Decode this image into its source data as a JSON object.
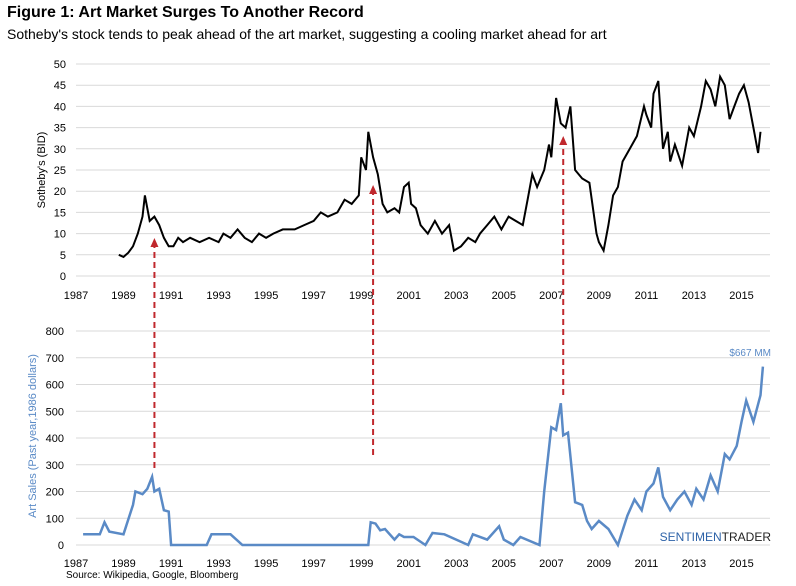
{
  "title": "Figure 1: Art Market Surges To Another Record",
  "subtitle": "Sotheby's stock tends to peak ahead of the art market, suggesting a cooling market ahead for art",
  "source": "Source: Wikipedia, Google, Bloomberg",
  "brand": {
    "part1": "SENTIMEN",
    "part2": "TRADER"
  },
  "colors": {
    "top_line": "#000000",
    "bottom_line": "#5a8ac6",
    "arrows": "#c0282d",
    "grid": "#d9d9d9"
  },
  "chart_data": [
    {
      "type": "line",
      "ylabel": "Sotheby's (BID)",
      "xlim": [
        1987,
        2016.2
      ],
      "ylim": [
        0,
        50
      ],
      "x_ticks": [
        "1987",
        "1989",
        "1991",
        "1993",
        "1995",
        "1997",
        "1999",
        "2001",
        "2003",
        "2005",
        "2007",
        "2009",
        "2011",
        "2013",
        "2015"
      ],
      "y_ticks": [
        "0",
        "5",
        "10",
        "15",
        "20",
        "25",
        "30",
        "35",
        "40",
        "45",
        "50"
      ],
      "grid": true,
      "series": [
        {
          "x": [
            1988.8,
            1989.0,
            1989.2,
            1989.4,
            1989.6,
            1989.8,
            1989.9,
            1990.0,
            1990.1,
            1990.3,
            1990.5,
            1990.7,
            1990.9,
            1991.1,
            1991.3,
            1991.5,
            1991.8,
            1992.2,
            1992.6,
            1993.0,
            1993.2,
            1993.5,
            1993.8,
            1994.1,
            1994.4,
            1994.7,
            1995.0,
            1995.3,
            1995.7,
            1996.2,
            1996.6,
            1997.0,
            1997.3,
            1997.6,
            1998.0,
            1998.3,
            1998.6,
            1998.9,
            1999.0,
            1999.2,
            1999.3,
            1999.5,
            1999.7,
            1999.9,
            2000.1,
            2000.4,
            2000.6,
            2000.8,
            2001.0,
            2001.1,
            2001.3,
            2001.5,
            2001.8,
            2002.1,
            2002.4,
            2002.7,
            2002.9,
            2003.2,
            2003.5,
            2003.8,
            2004.0,
            2004.3,
            2004.6,
            2004.9,
            2005.2,
            2005.5,
            2005.8,
            2006.0,
            2006.2,
            2006.4,
            2006.7,
            2006.9,
            2007.0,
            2007.2,
            2007.4,
            2007.6,
            2007.8,
            2008.0,
            2008.3,
            2008.6,
            2008.9,
            2009.0,
            2009.2,
            2009.4,
            2009.6,
            2009.8,
            2010.0,
            2010.3,
            2010.6,
            2010.9,
            2011.0,
            2011.2,
            2011.3,
            2011.5,
            2011.7,
            2011.9,
            2012.0,
            2012.2,
            2012.5,
            2012.8,
            2013.0,
            2013.3,
            2013.5,
            2013.7,
            2013.9,
            2014.1,
            2014.3,
            2014.5,
            2014.7,
            2014.9,
            2015.1,
            2015.3,
            2015.5,
            2015.7,
            2015.8
          ],
          "y": [
            5,
            4.5,
            5.5,
            7,
            10,
            14,
            19,
            16,
            13,
            14,
            12,
            9,
            7,
            7,
            9,
            8,
            9,
            8,
            9,
            8,
            10,
            9,
            11,
            9,
            8,
            10,
            9,
            10,
            11,
            11,
            12,
            13,
            15,
            14,
            15,
            18,
            17,
            19,
            28,
            25,
            34,
            28,
            24,
            17,
            15,
            16,
            15,
            21,
            22,
            17,
            16,
            12,
            10,
            13,
            10,
            12,
            6,
            7,
            9,
            8,
            10,
            12,
            14,
            11,
            14,
            13,
            12,
            18,
            24,
            21,
            25,
            31,
            28,
            42,
            36,
            35,
            40,
            25,
            23,
            22,
            10,
            8,
            6,
            12,
            19,
            21,
            27,
            30,
            33,
            40,
            38,
            35,
            43,
            46,
            30,
            34,
            27,
            31,
            26,
            35,
            33,
            40,
            46,
            44,
            40,
            47,
            45,
            37,
            40,
            43,
            45,
            41,
            35,
            29,
            34
          ]
        }
      ]
    },
    {
      "type": "line",
      "ylabel": "Art Sales (Past year,1986 dollars)",
      "xlim": [
        1987,
        2016.2
      ],
      "ylim": [
        0,
        800
      ],
      "x_ticks": [
        "1987",
        "1989",
        "1991",
        "1993",
        "1995",
        "1997",
        "1999",
        "2001",
        "2003",
        "2005",
        "2007",
        "2009",
        "2011",
        "2013",
        "2015"
      ],
      "y_ticks": [
        "0",
        "100",
        "200",
        "300",
        "400",
        "500",
        "600",
        "700",
        "800"
      ],
      "grid": true,
      "annotation": "$667 MM",
      "series": [
        {
          "x": [
            1987.3,
            1988.0,
            1988.2,
            1988.4,
            1989.0,
            1989.4,
            1989.5,
            1989.8,
            1990.0,
            1990.2,
            1990.3,
            1990.5,
            1990.7,
            1990.9,
            1991.0,
            1991.2,
            1991.4,
            1992.5,
            1992.7,
            1993.5,
            1994.0,
            1994.1,
            1998.5,
            1999.3,
            1999.4,
            1999.6,
            1999.8,
            2000.0,
            2000.4,
            2000.6,
            2000.8,
            2001.2,
            2001.7,
            2002.0,
            2002.5,
            2003.5,
            2003.7,
            2004.3,
            2004.8,
            2005.0,
            2005.4,
            2005.7,
            2006.5,
            2006.7,
            2007.0,
            2007.2,
            2007.4,
            2007.5,
            2007.7,
            2008.0,
            2008.3,
            2008.5,
            2008.7,
            2009.0,
            2009.4,
            2009.8,
            2010.2,
            2010.5,
            2010.8,
            2011.0,
            2011.3,
            2011.5,
            2011.7,
            2012.0,
            2012.3,
            2012.6,
            2012.9,
            2013.1,
            2013.4,
            2013.7,
            2014.0,
            2014.3,
            2014.5,
            2014.8,
            2015.0,
            2015.2,
            2015.5,
            2015.8,
            2015.9
          ],
          "y": [
            40,
            40,
            85,
            50,
            40,
            150,
            200,
            190,
            210,
            255,
            200,
            210,
            130,
            125,
            0,
            0,
            0,
            0,
            40,
            40,
            0,
            0,
            0,
            0,
            85,
            80,
            55,
            60,
            20,
            40,
            30,
            30,
            0,
            45,
            40,
            0,
            40,
            20,
            70,
            20,
            0,
            30,
            0,
            200,
            440,
            430,
            530,
            410,
            420,
            160,
            150,
            90,
            60,
            90,
            60,
            0,
            110,
            170,
            130,
            200,
            230,
            290,
            180,
            130,
            170,
            200,
            150,
            210,
            170,
            260,
            200,
            340,
            320,
            370,
            460,
            540,
            460,
            560,
            667
          ]
        }
      ]
    }
  ],
  "arrows_years": [
    1990.3,
    1999.5,
    2007.5
  ]
}
